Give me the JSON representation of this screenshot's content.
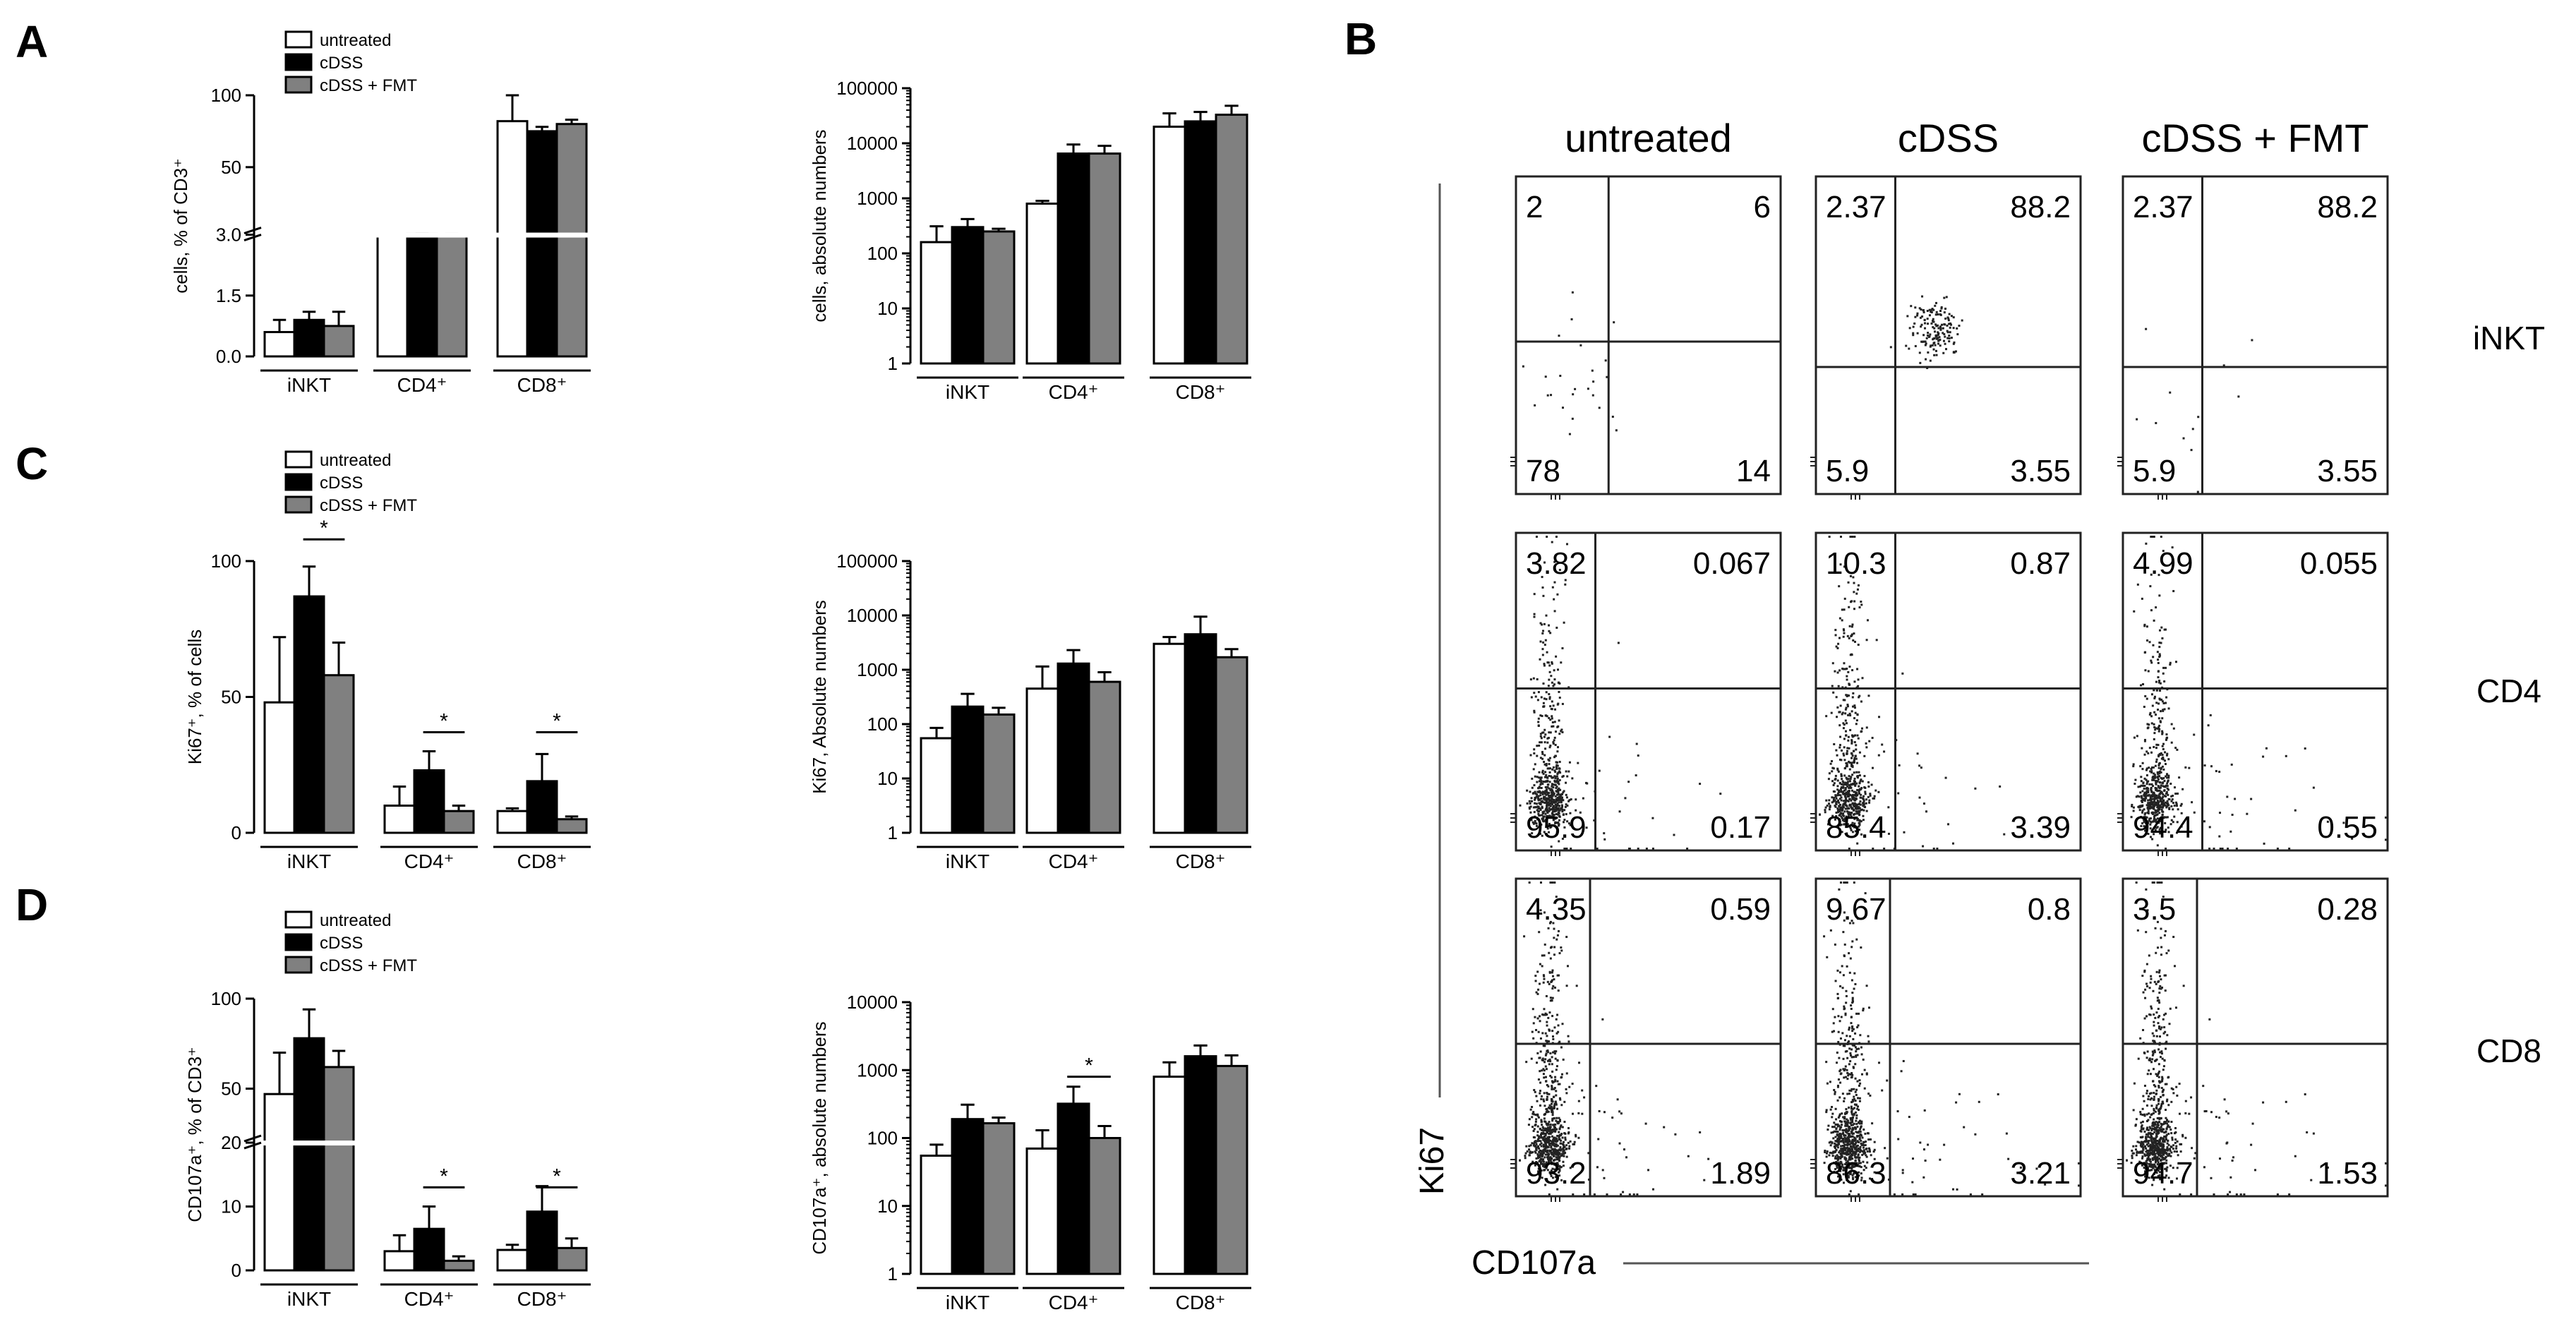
{
  "panel_letters": {
    "A": "A",
    "B": "B",
    "C": "C",
    "D": "D"
  },
  "legend": [
    "untreated",
    "cDSS",
    "cDSS + FMT"
  ],
  "colors": {
    "untreated": "#ffffff",
    "cDSS": "#000000",
    "cDSS + FMT": "#808080",
    "axis": "#000000",
    "dot": "#222222"
  },
  "flow": {
    "columns": [
      "untreated",
      "cDSS",
      "cDSS + FMT"
    ],
    "rows": [
      "iNKT",
      "CD4",
      "CD8"
    ],
    "y_axis_label": "Ki67",
    "x_axis_label": "CD107a",
    "quadrants": [
      [
        [
          "2",
          "6",
          "78",
          "14"
        ],
        [
          "2.37",
          "88.2",
          "5.9",
          "3.55"
        ],
        [
          "2.37",
          "88.2",
          "5.9",
          "3.55"
        ]
      ],
      [
        [
          "3.82",
          "0.067",
          "95.9",
          "0.17"
        ],
        [
          "10.3",
          "0.87",
          "85.4",
          "3.39"
        ],
        [
          "4.99",
          "0.055",
          "94.4",
          "0.55"
        ]
      ],
      [
        [
          "4.35",
          "0.59",
          "93.2",
          "1.89"
        ],
        [
          "9.67",
          "0.8",
          "86.3",
          "3.21"
        ],
        [
          "3.5",
          "0.28",
          "94.7",
          "1.53"
        ]
      ]
    ]
  },
  "chart_data": [
    {
      "id": "A-percent",
      "type": "bar",
      "panel": "A",
      "categories": [
        "iNKT",
        "CD4⁺",
        "CD8⁺"
      ],
      "series": [
        {
          "name": "untreated",
          "values": [
            0.6,
            3.2,
            82
          ],
          "errors": [
            0.3,
            0.1,
            28
          ]
        },
        {
          "name": "cDSS",
          "values": [
            0.9,
            3.6,
            75
          ],
          "errors": [
            0.2,
            0.1,
            3
          ]
        },
        {
          "name": "cDSS + FMT",
          "values": [
            0.75,
            3.5,
            80
          ],
          "errors": [
            0.35,
            0.1,
            3
          ]
        }
      ],
      "ylabel": "cells, % of CD3⁺",
      "scale": "broken",
      "ylim": [
        0,
        100
      ],
      "yticks": [
        "0.0",
        "1.5",
        "3.0",
        "50",
        "100"
      ],
      "significance": []
    },
    {
      "id": "A-absolute",
      "type": "bar",
      "panel": "A",
      "categories": [
        "iNKT",
        "CD4⁺",
        "CD8⁺"
      ],
      "series": [
        {
          "name": "untreated",
          "values": [
            160,
            800,
            20000
          ],
          "errors": [
            150,
            100,
            15000
          ]
        },
        {
          "name": "cDSS",
          "values": [
            300,
            6500,
            25000
          ],
          "errors": [
            120,
            3000,
            12000
          ]
        },
        {
          "name": "cDSS + FMT",
          "values": [
            250,
            6500,
            33000
          ],
          "errors": [
            30,
            2500,
            15000
          ]
        }
      ],
      "ylabel": "cells, absolute numbers",
      "scale": "log",
      "ylim": [
        1,
        100000
      ],
      "yticks": [
        "1",
        "10",
        "100",
        "1000",
        "10000",
        "100000"
      ],
      "significance": []
    },
    {
      "id": "C-percent",
      "type": "bar",
      "panel": "C",
      "categories": [
        "iNKT",
        "CD4⁺",
        "CD8⁺"
      ],
      "series": [
        {
          "name": "untreated",
          "values": [
            48,
            10,
            8
          ],
          "errors": [
            24,
            7,
            1
          ]
        },
        {
          "name": "cDSS",
          "values": [
            87,
            23,
            19
          ],
          "errors": [
            11,
            7,
            10
          ]
        },
        {
          "name": "cDSS + FMT",
          "values": [
            58,
            8,
            5
          ],
          "errors": [
            12,
            2,
            1
          ]
        }
      ],
      "ylabel": "Ki67⁺, % of cells",
      "scale": "linear",
      "ylim": [
        0,
        100
      ],
      "yticks": [
        "0",
        "50",
        "100"
      ],
      "significance": [
        {
          "category": 0,
          "from": 1,
          "to": 2,
          "label": "*",
          "y": 108
        },
        {
          "category": 1,
          "from": 1,
          "to": 2,
          "label": "*",
          "y": 37
        },
        {
          "category": 2,
          "from": 1,
          "to": 2,
          "label": "*",
          "y": 37
        }
      ]
    },
    {
      "id": "C-absolute",
      "type": "bar",
      "panel": "C",
      "categories": [
        "iNKT",
        "CD4⁺",
        "CD8⁺"
      ],
      "series": [
        {
          "name": "untreated",
          "values": [
            55,
            450,
            3000
          ],
          "errors": [
            30,
            700,
            1000
          ]
        },
        {
          "name": "cDSS",
          "values": [
            210,
            1300,
            4500
          ],
          "errors": [
            150,
            1000,
            5000
          ]
        },
        {
          "name": "cDSS + FMT",
          "values": [
            150,
            600,
            1700
          ],
          "errors": [
            50,
            300,
            700
          ]
        }
      ],
      "ylabel": "Ki67, Absolute numbers",
      "scale": "log",
      "ylim": [
        1,
        100000
      ],
      "yticks": [
        "1",
        "10",
        "100",
        "1000",
        "10000",
        "100000"
      ],
      "significance": []
    },
    {
      "id": "D-percent",
      "type": "bar",
      "panel": "D",
      "categories": [
        "iNKT",
        "CD4⁺",
        "CD8⁺"
      ],
      "series": [
        {
          "name": "untreated",
          "values": [
            47,
            3,
            3.2
          ],
          "errors": [
            23,
            2.5,
            0.8
          ]
        },
        {
          "name": "cDSS",
          "values": [
            78,
            6.5,
            9.2
          ],
          "errors": [
            16,
            3.5,
            4
          ]
        },
        {
          "name": "cDSS + FMT",
          "values": [
            62,
            1.5,
            3.5
          ],
          "errors": [
            9,
            0.7,
            1.5
          ]
        }
      ],
      "ylabel": "CD107a⁺, % of CD3⁺",
      "scale": "broken2",
      "ylim": [
        0,
        100
      ],
      "yticks": [
        "0",
        "10",
        "20",
        "50",
        "100"
      ],
      "significance": [
        {
          "category": 1,
          "from": 1,
          "to": 2,
          "label": "*",
          "y": 13
        },
        {
          "category": 2,
          "from": 1,
          "to": 2,
          "label": "*",
          "y": 13
        }
      ]
    },
    {
      "id": "D-absolute",
      "type": "bar",
      "panel": "D",
      "categories": [
        "iNKT",
        "CD4⁺",
        "CD8⁺"
      ],
      "series": [
        {
          "name": "untreated",
          "values": [
            55,
            70,
            800
          ],
          "errors": [
            25,
            60,
            500
          ]
        },
        {
          "name": "cDSS",
          "values": [
            190,
            320,
            1600
          ],
          "errors": [
            120,
            250,
            700
          ]
        },
        {
          "name": "cDSS + FMT",
          "values": [
            165,
            100,
            1150
          ],
          "errors": [
            35,
            50,
            500
          ]
        }
      ],
      "ylabel": "CD107a⁺, absolute numbers",
      "scale": "log",
      "ylim": [
        1,
        10000
      ],
      "yticks": [
        "1",
        "10",
        "100",
        "1000",
        "10000"
      ],
      "significance": [
        {
          "category": 1,
          "from": 1,
          "to": 2,
          "label": "*",
          "y": 800
        }
      ]
    }
  ]
}
